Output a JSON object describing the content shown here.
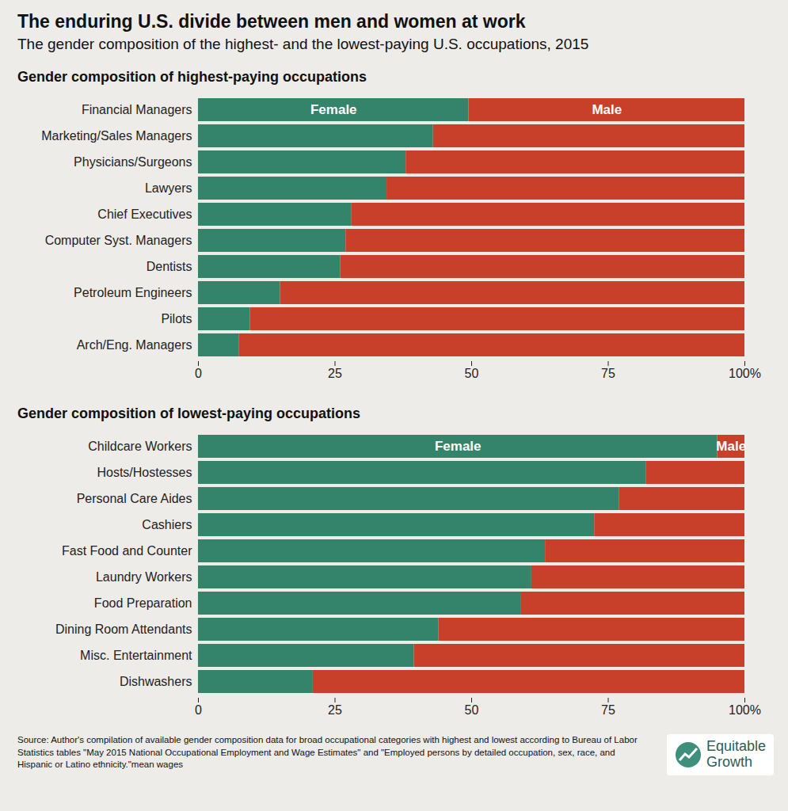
{
  "title": "The enduring U.S. divide between men and women at work",
  "subtitle": "The gender composition of the highest- and the lowest-paying U.S. occupations, 2015",
  "source": "Source: Author's compilation of available gender composition data for broad occupational categories with highest and lowest according to Bureau of Labor Statistics tables \"May 2015 National Occupational Employment and Wage Estimates\" and \"Employed persons by detailed occupation, sex, race, and Hispanic or Latino ethnicity.\"mean wages",
  "logo": "Equitable Growth",
  "chart_data": [
    {
      "type": "bar",
      "orientation": "horizontal",
      "stacked": true,
      "grid": false,
      "title": "Gender composition of highest-paying occupations",
      "categories": [
        "Financial Managers",
        "Marketing/Sales Managers",
        "Physicians/Surgeons",
        "Lawyers",
        "Chief Executives",
        "Computer Syst. Managers",
        "Dentists",
        "Petroleum Engineers",
        "Pilots",
        "Arch/Eng. Managers"
      ],
      "series": [
        {
          "name": "Female",
          "color": "#33846a",
          "values": [
            49.5,
            43,
            38,
            34.5,
            28,
            27,
            26,
            15,
            9.5,
            7.5
          ]
        },
        {
          "name": "Male",
          "color": "#c8402a",
          "values": [
            50.5,
            57,
            62,
            65.5,
            72,
            73,
            74,
            85,
            90.5,
            92.5
          ]
        }
      ],
      "xlim": [
        0,
        100
      ],
      "xticks": [
        0,
        25,
        50,
        75,
        {
          "value": 100,
          "label": "100%"
        }
      ]
    },
    {
      "type": "bar",
      "orientation": "horizontal",
      "stacked": true,
      "grid": false,
      "title": "Gender composition of lowest-paying occupations",
      "categories": [
        "Childcare Workers",
        "Hosts/Hostesses",
        "Personal Care Aides",
        "Cashiers",
        "Fast Food and Counter",
        "Laundry Workers",
        "Food Preparation",
        "Dining Room Attendants",
        "Misc. Entertainment",
        "Dishwashers"
      ],
      "series": [
        {
          "name": "Female",
          "color": "#33846a",
          "values": [
            95,
            82,
            77,
            72.5,
            63.5,
            61,
            59,
            44,
            39.5,
            21
          ]
        },
        {
          "name": "Male",
          "color": "#c8402a",
          "values": [
            5,
            18,
            23,
            27.5,
            36.5,
            39,
            41,
            56,
            60.5,
            79
          ]
        }
      ],
      "xlim": [
        0,
        100
      ],
      "xticks": [
        0,
        25,
        50,
        75,
        {
          "value": 100,
          "label": "100%"
        }
      ]
    }
  ]
}
